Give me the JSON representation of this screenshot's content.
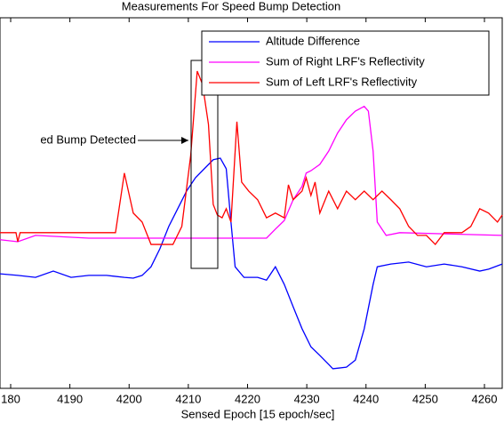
{
  "chart_data": {
    "type": "line",
    "title": "Measurements For Speed Bump Detection",
    "xlabel": "Sensed Epoch [15 epoch/sec]",
    "annotation": "ed Bump Detected",
    "legend": "northeast",
    "xlim": [
      4178.2,
      4263
    ],
    "ylim": [
      4.1,
      98.6
    ],
    "xticks": [
      {
        "value": 4180,
        "label": "180"
      },
      4190,
      4200,
      4210,
      4220,
      4230,
      4240,
      4250,
      4260
    ],
    "series": [
      {
        "name": "Altitude Difference",
        "color": "#0000ff",
        "x": [
          4178.2,
          4181.2,
          4184.2,
          4187.2,
          4190.2,
          4193.2,
          4196.2,
          4199.2,
          4200.7,
          4202.2,
          4203.7,
          4205.2,
          4206.7,
          4208.2,
          4209.7,
          4211.2,
          4212.7,
          4214.2,
          4215.4,
          4216.4,
          4217.2,
          4217.9,
          4219.4,
          4221.7,
          4223.2,
          4224.7,
          4226.2,
          4227.7,
          4229.2,
          4230.7,
          4232.2,
          4233.7,
          4234.4,
          4236.7,
          4238.2,
          4239.7,
          4241.2,
          4241.9,
          4244.2,
          4247.2,
          4250.2,
          4253.2,
          4256.2,
          4259.2,
          4260.7,
          4263
        ],
        "values": [
          33.3,
          32.9,
          32.4,
          34.0,
          32.4,
          32.9,
          32.9,
          32.4,
          32.2,
          32.9,
          35.1,
          39.7,
          45.4,
          49.9,
          54.4,
          57.8,
          60.1,
          62.4,
          62.8,
          60.1,
          46.5,
          35.1,
          32.4,
          32.4,
          31.7,
          35.1,
          30.6,
          24.9,
          19.3,
          14.7,
          12.5,
          10.2,
          9.1,
          9.5,
          11.3,
          19.3,
          30.6,
          35.1,
          35.8,
          36.3,
          35.1,
          35.8,
          35.1,
          34.0,
          34.5,
          35.8
        ]
      },
      {
        "name": "Sum of Right LRF's Reflectivity",
        "color": "#ff00ff",
        "x": [
          4178.2,
          4181.2,
          4184.2,
          4193.2,
          4208.2,
          4223.2,
          4224.7,
          4226.2,
          4227.7,
          4229.2,
          4229.9,
          4230.7,
          4232.2,
          4233.7,
          4235.2,
          4236.7,
          4238.2,
          4239.7,
          4240.4,
          4241.2,
          4241.9,
          4243.4,
          4245.7,
          4263
        ],
        "values": [
          42.0,
          41.5,
          43.1,
          42.4,
          42.4,
          42.4,
          44.7,
          46.9,
          52.2,
          55.6,
          59.0,
          59.6,
          61.2,
          64.6,
          69.2,
          72.6,
          74.8,
          76.0,
          74.8,
          64.6,
          46.5,
          43.1,
          43.8,
          43.1
        ]
      },
      {
        "name": "Sum of Left LRF's Reflectivity",
        "color": "#ff0000",
        "x": [
          4178.2,
          4180.9,
          4181.2,
          4181.6,
          4197.7,
          4199.2,
          4200.7,
          4202.2,
          4203.7,
          4207.4,
          4208.9,
          4210.4,
          4211.5,
          4212.4,
          4213.4,
          4214.2,
          4214.9,
          4215.7,
          4216.4,
          4217.2,
          4218.2,
          4219,
          4220.2,
          4221.7,
          4223.2,
          4224.7,
          4226.2,
          4226.9,
          4227.7,
          4229.2,
          4229.9,
          4230.7,
          4231.4,
          4232.2,
          4233.7,
          4235.2,
          4236.7,
          4238.2,
          4239.7,
          4241.2,
          4242.7,
          4244.2,
          4245.7,
          4247.2,
          4248.7,
          4250.2,
          4251.7,
          4253.2,
          4254.7,
          4256.2,
          4257.7,
          4259.2,
          4260.7,
          4262.2,
          4263
        ],
        "values": [
          43.8,
          43.8,
          41.5,
          43.8,
          43.8,
          59.0,
          48.8,
          46.5,
          40.8,
          40.8,
          45.4,
          63.5,
          85.0,
          81.6,
          71.4,
          51.0,
          48.3,
          47.6,
          49.9,
          46.5,
          72.1,
          56.7,
          54.4,
          52.2,
          47.6,
          48.8,
          47.6,
          56.0,
          52.2,
          54.4,
          57.8,
          53.3,
          56.7,
          48.8,
          54.4,
          49.9,
          54.4,
          52.2,
          54.4,
          52.2,
          54.4,
          52.2,
          49.9,
          45.4,
          43.1,
          43.1,
          40.8,
          43.8,
          43.8,
          43.8,
          45.4,
          49.9,
          48.8,
          46.5,
          48.3
        ]
      }
    ]
  }
}
